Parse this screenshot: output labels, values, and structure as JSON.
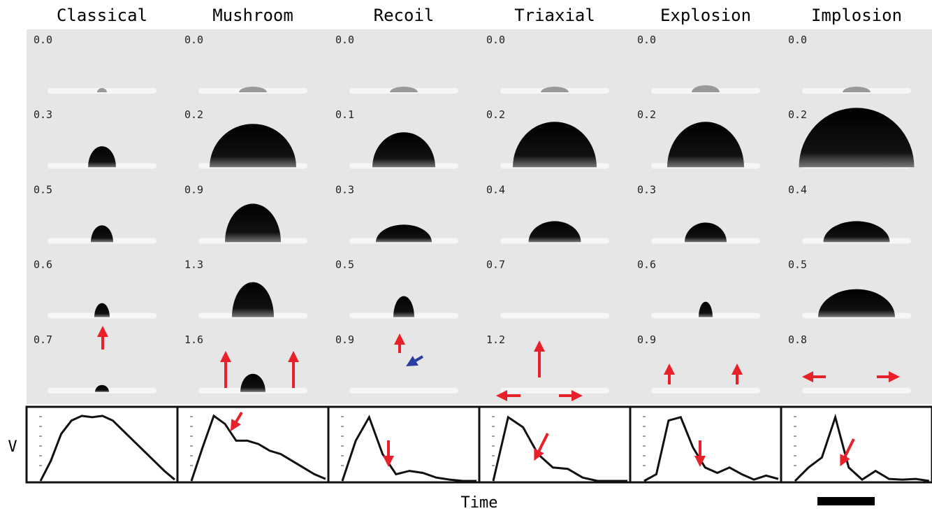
{
  "columns": [
    {
      "title": "Classical",
      "times": [
        "0.0",
        "0.3",
        "0.5",
        "0.6",
        "0.7"
      ],
      "volume": [
        0,
        0.3,
        0.7,
        0.9,
        0.97,
        0.95,
        0.97,
        0.9,
        0.75,
        0.6,
        0.45,
        0.3,
        0.15,
        0.02
      ]
    },
    {
      "title": "Mushroom",
      "times": [
        "0.0",
        "0.2",
        "0.9",
        "1.3",
        "1.6"
      ],
      "volume": [
        0,
        0.5,
        0.97,
        0.85,
        0.6,
        0.6,
        0.55,
        0.45,
        0.4,
        0.3,
        0.2,
        0.1,
        0.03
      ]
    },
    {
      "title": "Recoil",
      "times": [
        "0.0",
        "0.1",
        "0.3",
        "0.5",
        "0.9"
      ],
      "volume": [
        0,
        0.6,
        0.95,
        0.4,
        0.1,
        0.15,
        0.12,
        0.05,
        0.02,
        0,
        0
      ]
    },
    {
      "title": "Triaxial",
      "times": [
        "0.0",
        "0.2",
        "0.4",
        "0.7",
        "1.2"
      ],
      "volume": [
        0,
        0.95,
        0.8,
        0.4,
        0.2,
        0.18,
        0.05,
        0,
        0,
        0
      ]
    },
    {
      "title": "Explosion",
      "times": [
        "0.0",
        "0.2",
        "0.3",
        "0.6",
        "0.9"
      ],
      "volume": [
        0,
        0.1,
        0.9,
        0.95,
        0.5,
        0.2,
        0.12,
        0.2,
        0.1,
        0.02,
        0.08,
        0.03
      ]
    },
    {
      "title": "Implosion",
      "times": [
        "0.0",
        "0.2",
        "0.4",
        "0.5",
        "0.8"
      ],
      "volume": [
        0,
        0.2,
        0.35,
        0.95,
        0.2,
        0.02,
        0.15,
        0.03,
        0.02,
        0.03,
        0
      ]
    }
  ],
  "y_label": "V",
  "x_label": "Time"
}
